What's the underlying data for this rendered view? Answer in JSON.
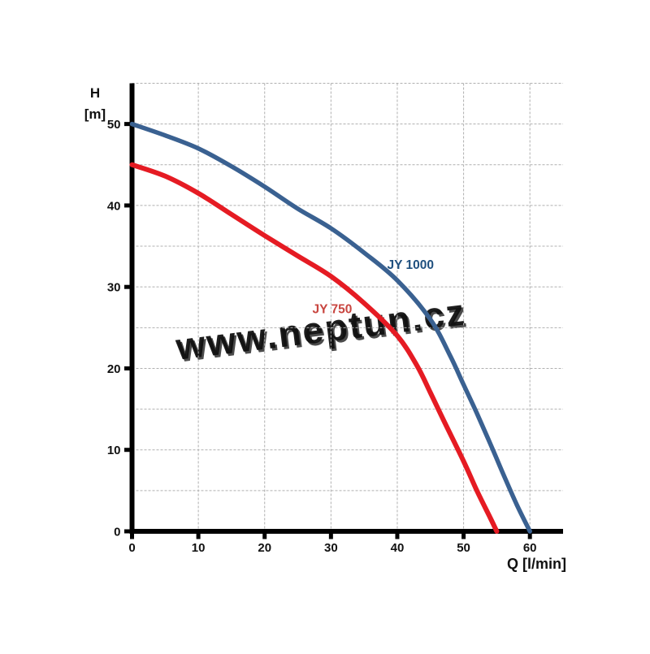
{
  "chart_data": {
    "type": "line",
    "title": "",
    "xlabel": "Q [l/min]",
    "ylabel_line1": "H",
    "ylabel_line2": "[m]",
    "xlim": [
      0,
      65
    ],
    "ylim": [
      0,
      55
    ],
    "x_ticks": [
      0,
      10,
      20,
      30,
      40,
      50,
      60
    ],
    "y_ticks": [
      0,
      10,
      20,
      30,
      40,
      50
    ],
    "x_grid_step": 10,
    "y_grid_step": 5,
    "grid": "dashed",
    "grid_color": "#b0b0b0",
    "axis_color": "#000000",
    "legend_position": "inline-labels",
    "series": [
      {
        "name": "JY 1000",
        "color": "#3a6191",
        "label_color": "#20507f",
        "label_anchor": {
          "x": 42,
          "y": 32.7
        },
        "points": [
          [
            0,
            50
          ],
          [
            5,
            48.6
          ],
          [
            10,
            47.0
          ],
          [
            15,
            44.8
          ],
          [
            20,
            42.3
          ],
          [
            25,
            39.6
          ],
          [
            30,
            37.2
          ],
          [
            35,
            34.2
          ],
          [
            40,
            30.8
          ],
          [
            45,
            26.0
          ],
          [
            48,
            21.5
          ],
          [
            50,
            18.0
          ],
          [
            52,
            14.5
          ],
          [
            54,
            10.8
          ],
          [
            56,
            7.0
          ],
          [
            58,
            3.3
          ],
          [
            60,
            0
          ]
        ]
      },
      {
        "name": "JY 750",
        "color": "#e51b23",
        "label_color": "#c8453f",
        "label_anchor": {
          "x": 30.2,
          "y": 27.3
        },
        "points": [
          [
            0,
            45
          ],
          [
            5,
            43.6
          ],
          [
            10,
            41.5
          ],
          [
            15,
            38.9
          ],
          [
            20,
            36.3
          ],
          [
            25,
            33.8
          ],
          [
            30,
            31.3
          ],
          [
            35,
            28.0
          ],
          [
            40,
            24.0
          ],
          [
            43,
            20.3
          ],
          [
            45,
            17.0
          ],
          [
            47,
            13.6
          ],
          [
            50,
            8.6
          ],
          [
            52,
            5.0
          ],
          [
            54,
            1.7
          ],
          [
            55,
            0
          ]
        ]
      }
    ],
    "watermark": "www.neptun.cz"
  }
}
